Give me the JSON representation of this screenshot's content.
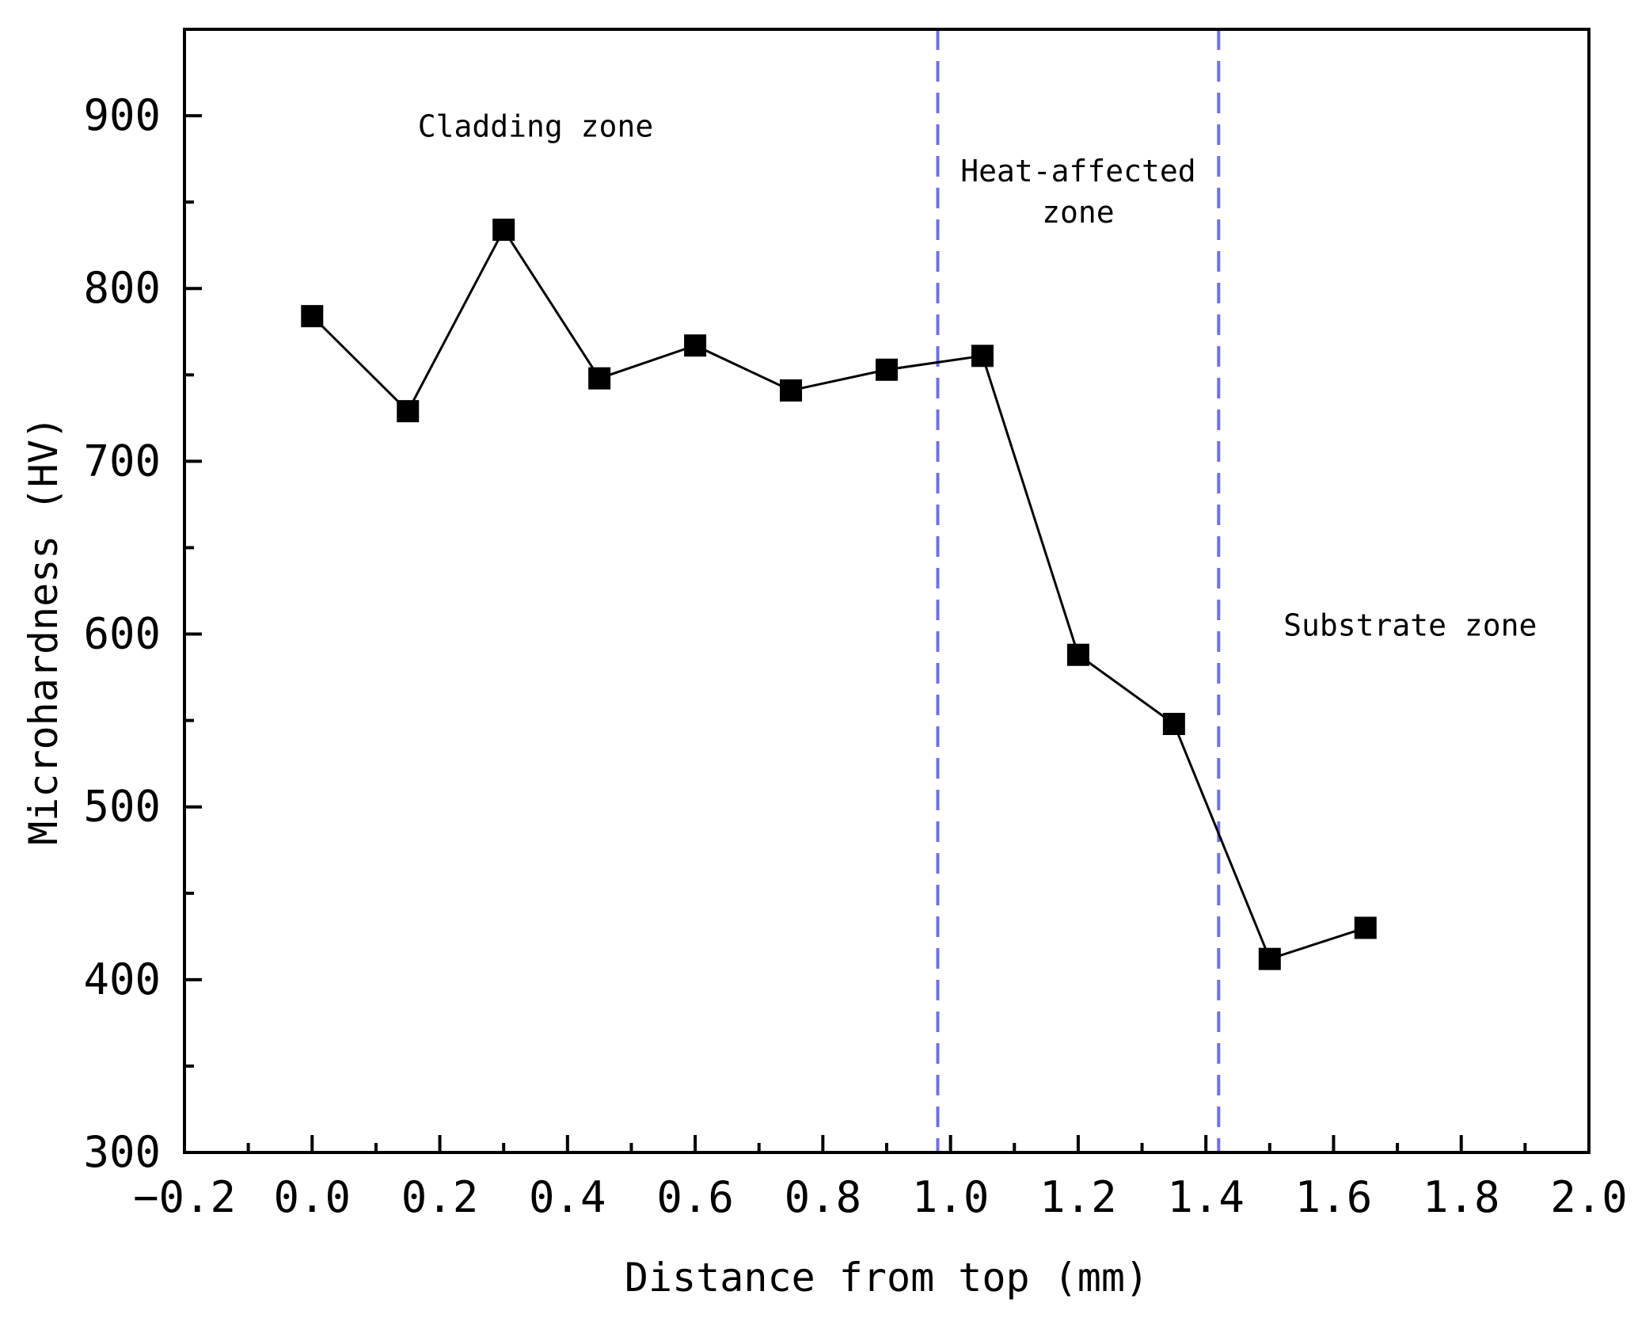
{
  "chart_data": {
    "type": "line",
    "title": "",
    "xlabel": "Distance from top (mm)",
    "ylabel": "Microhardness (HV)",
    "xlim": [
      -0.2,
      2.0
    ],
    "ylim": [
      300,
      950
    ],
    "x_ticks": [
      -0.2,
      0.0,
      0.2,
      0.4,
      0.6,
      0.8,
      1.0,
      1.2,
      1.4,
      1.6,
      1.8,
      2.0
    ],
    "x_tick_labels": [
      "−0.2",
      "0.0",
      "0.2",
      "0.4",
      "0.6",
      "0.8",
      "1.0",
      "1.2",
      "1.4",
      "1.6",
      "1.8",
      "2.0"
    ],
    "y_ticks": [
      300,
      400,
      500,
      600,
      700,
      800,
      900
    ],
    "y_tick_labels": [
      "300",
      "400",
      "500",
      "600",
      "700",
      "800",
      "900"
    ],
    "grid": false,
    "series": [
      {
        "name": "Microhardness",
        "marker": "square",
        "color": "#000000",
        "x": [
          0.0,
          0.15,
          0.3,
          0.45,
          0.6,
          0.75,
          0.9,
          1.05,
          1.2,
          1.35,
          1.5,
          1.65
        ],
        "values": [
          784,
          729,
          834,
          748,
          767,
          741,
          753,
          761,
          588,
          548,
          412,
          430
        ]
      }
    ],
    "reference_lines": [
      {
        "orientation": "vertical",
        "x": 0.98,
        "style": "dashed",
        "color": "#7070e8"
      },
      {
        "orientation": "vertical",
        "x": 1.42,
        "style": "dashed",
        "color": "#7070e8"
      }
    ],
    "annotations": [
      {
        "name": "cladding",
        "lines": [
          "Cladding zone"
        ],
        "x": 0.35,
        "y": 888
      },
      {
        "name": "haz",
        "lines": [
          "Heat-affected",
          "zone"
        ],
        "x": 1.2,
        "y": 862
      },
      {
        "name": "substrate",
        "lines": [
          "Substrate zone"
        ],
        "x": 1.72,
        "y": 599
      }
    ]
  }
}
